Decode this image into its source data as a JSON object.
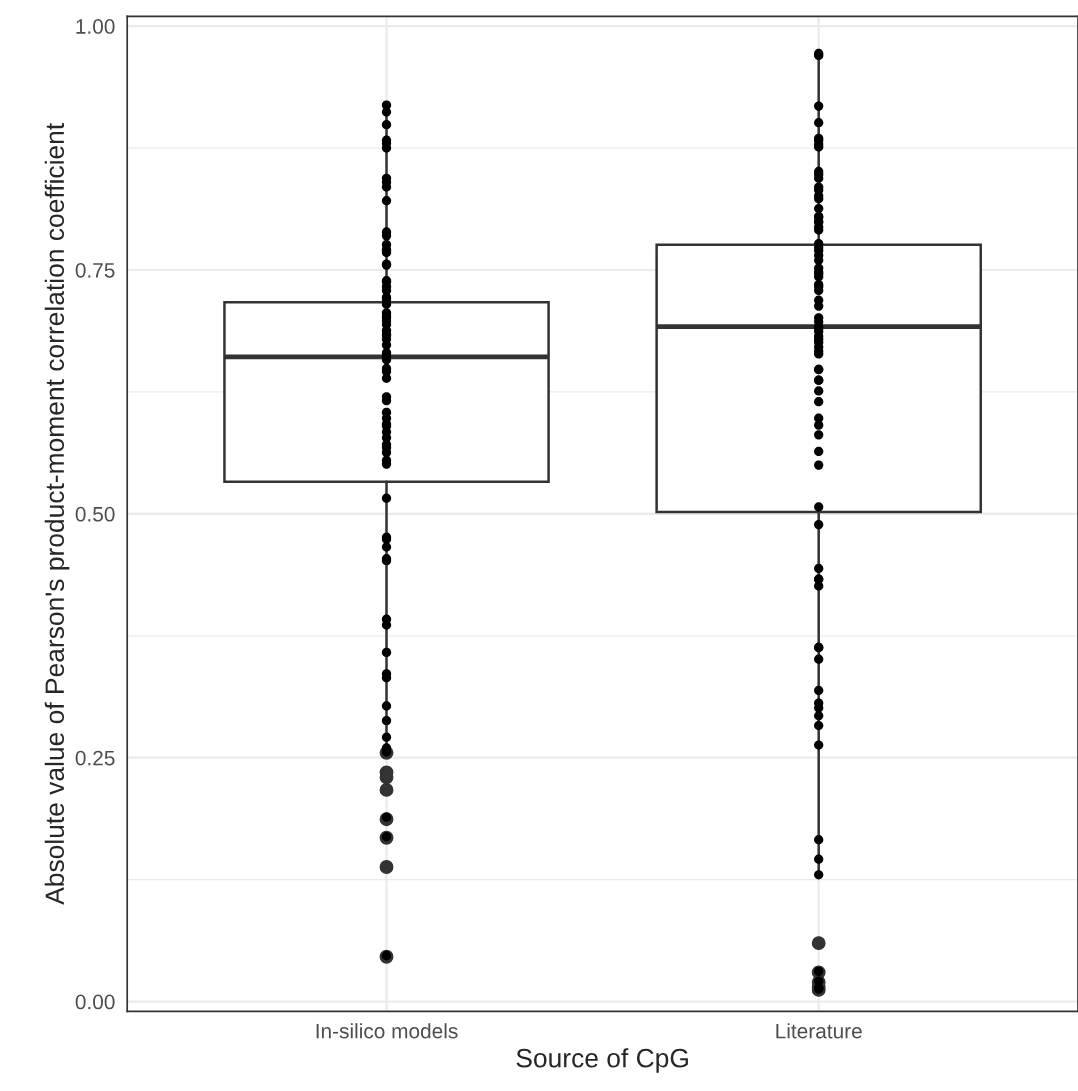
{
  "chart_data": {
    "type": "box",
    "xlabel": "Source of CpG",
    "ylabel": "Absolute value of Pearson's product-moment correlation coefficient",
    "categories": [
      "In-silico models",
      "Literature"
    ],
    "boxes": [
      {
        "low": 0.259,
        "q1": 0.533,
        "median": 0.661,
        "q3": 0.717,
        "high": 0.916,
        "outliers": [
          0.255,
          0.235,
          0.23,
          0.217,
          0.187,
          0.168,
          0.138,
          0.046
        ]
      },
      {
        "low": 0.13,
        "q1": 0.502,
        "median": 0.692,
        "q3": 0.776,
        "high": 0.972,
        "outliers": [
          0.06,
          0.03,
          0.02,
          0.015,
          0.012
        ]
      }
    ],
    "color": "#333333",
    "series": [
      {
        "type": "scatter",
        "color": "#000000",
        "x": [
          "In-silico models",
          "In-silico models",
          "In-silico models",
          "In-silico models",
          "In-silico models",
          "In-silico models",
          "In-silico models",
          "In-silico models",
          "In-silico models",
          "In-silico models",
          "In-silico models",
          "In-silico models",
          "In-silico models",
          "In-silico models",
          "In-silico models",
          "In-silico models",
          "In-silico models",
          "In-silico models",
          "In-silico models",
          "In-silico models",
          "In-silico models",
          "In-silico models",
          "In-silico models",
          "In-silico models",
          "In-silico models",
          "In-silico models",
          "In-silico models",
          "In-silico models",
          "In-silico models",
          "In-silico models",
          "In-silico models",
          "In-silico models",
          "In-silico models",
          "In-silico models",
          "In-silico models",
          "In-silico models",
          "In-silico models",
          "In-silico models",
          "In-silico models",
          "In-silico models",
          "In-silico models",
          "In-silico models",
          "In-silico models",
          "In-silico models",
          "In-silico models",
          "In-silico models",
          "In-silico models",
          "In-silico models",
          "In-silico models",
          "In-silico models",
          "In-silico models",
          "In-silico models",
          "In-silico models",
          "In-silico models",
          "In-silico models",
          "In-silico models",
          "In-silico models",
          "In-silico models",
          "In-silico models",
          "In-silico models",
          "In-silico models",
          "In-silico models",
          "In-silico models",
          "In-silico models",
          "In-silico models",
          "In-silico models",
          "In-silico models",
          "In-silico models",
          "In-silico models",
          "In-silico models",
          "In-silico models",
          "In-silico models",
          "In-silico models",
          "In-silico models"
        ],
        "values": [
          0.919,
          0.912,
          0.899,
          0.883,
          0.88,
          0.875,
          0.84,
          0.844,
          0.835,
          0.821,
          0.789,
          0.785,
          0.776,
          0.771,
          0.77,
          0.768,
          0.756,
          0.755,
          0.739,
          0.738,
          0.733,
          0.729,
          0.722,
          0.72,
          0.715,
          0.706,
          0.703,
          0.701,
          0.698,
          0.694,
          0.688,
          0.684,
          0.683,
          0.679,
          0.673,
          0.665,
          0.662,
          0.658,
          0.649,
          0.646,
          0.639,
          0.62,
          0.616,
          0.604,
          0.598,
          0.592,
          0.59,
          0.584,
          0.578,
          0.571,
          0.568,
          0.563,
          0.555,
          0.551,
          0.516,
          0.476,
          0.474,
          0.466,
          0.454,
          0.452,
          0.392,
          0.386,
          0.358,
          0.336,
          0.332,
          0.303,
          0.288,
          0.271,
          0.26,
          0.259,
          0.256,
          0.189,
          0.169,
          0.047
        ]
      },
      {
        "type": "scatter",
        "color": "#000000",
        "x": [
          "Literature",
          "Literature",
          "Literature",
          "Literature",
          "Literature",
          "Literature",
          "Literature",
          "Literature",
          "Literature",
          "Literature",
          "Literature",
          "Literature",
          "Literature",
          "Literature",
          "Literature",
          "Literature",
          "Literature",
          "Literature",
          "Literature",
          "Literature",
          "Literature",
          "Literature",
          "Literature",
          "Literature",
          "Literature",
          "Literature",
          "Literature",
          "Literature",
          "Literature",
          "Literature",
          "Literature",
          "Literature",
          "Literature",
          "Literature",
          "Literature",
          "Literature",
          "Literature",
          "Literature",
          "Literature",
          "Literature",
          "Literature",
          "Literature",
          "Literature",
          "Literature",
          "Literature",
          "Literature",
          "Literature",
          "Literature",
          "Literature",
          "Literature",
          "Literature",
          "Literature",
          "Literature",
          "Literature",
          "Literature",
          "Literature",
          "Literature",
          "Literature",
          "Literature",
          "Literature",
          "Literature",
          "Literature",
          "Literature",
          "Literature",
          "Literature",
          "Literature",
          "Literature",
          "Literature",
          "Literature",
          "Literature",
          "Literature",
          "Literature",
          "Literature",
          "Literature",
          "Literature",
          "Literature",
          "Literature",
          "Literature",
          "Literature",
          "Literature",
          "Literature",
          "Literature"
        ],
        "values": [
          0.972,
          0.97,
          0.918,
          0.901,
          0.885,
          0.883,
          0.879,
          0.876,
          0.851,
          0.848,
          0.844,
          0.835,
          0.832,
          0.826,
          0.823,
          0.813,
          0.805,
          0.804,
          0.8,
          0.799,
          0.794,
          0.791,
          0.777,
          0.773,
          0.77,
          0.765,
          0.76,
          0.752,
          0.748,
          0.746,
          0.743,
          0.735,
          0.733,
          0.729,
          0.719,
          0.713,
          0.701,
          0.697,
          0.692,
          0.69,
          0.687,
          0.682,
          0.679,
          0.676,
          0.671,
          0.667,
          0.664,
          0.648,
          0.648,
          0.637,
          0.637,
          0.626,
          0.615,
          0.598,
          0.591,
          0.581,
          0.564,
          0.55,
          0.507,
          0.489,
          0.444,
          0.433,
          0.433,
          0.426,
          0.363,
          0.363,
          0.351,
          0.319,
          0.306,
          0.301,
          0.293,
          0.283,
          0.263,
          0.166,
          0.146,
          0.13,
          0.031,
          0.021,
          0.014,
          0.014,
          0.013,
          0.013
        ]
      }
    ],
    "ylim": [
      -0.01,
      1.01
    ],
    "yticks": [
      {
        "value": 0.0,
        "label": "0.00"
      },
      {
        "value": 0.125,
        "label": null
      },
      {
        "value": 0.25,
        "label": "0.25"
      },
      {
        "value": 0.375,
        "label": null
      },
      {
        "value": 0.5,
        "label": "0.50"
      },
      {
        "value": 0.625,
        "label": null
      },
      {
        "value": 0.75,
        "label": "0.75"
      },
      {
        "value": 0.875,
        "label": null
      },
      {
        "value": 1.0,
        "label": "1.00"
      }
    ],
    "grid": true,
    "marker": "circle"
  }
}
